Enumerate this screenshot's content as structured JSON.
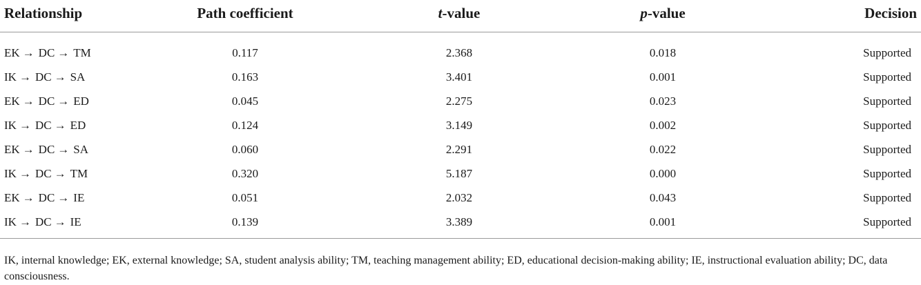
{
  "table": {
    "headers": {
      "relationship": "Relationship",
      "path_coefficient": "Path coefficient",
      "t_italic": "t",
      "t_rest": "-value",
      "p_italic": "p",
      "p_rest": "-value",
      "decision": "Decision"
    },
    "arrow": "→",
    "rows": [
      {
        "from": "EK",
        "via": "DC",
        "to": "TM",
        "path": "0.117",
        "t": "2.368",
        "p": "0.018",
        "decision": "Supported"
      },
      {
        "from": "IK",
        "via": "DC",
        "to": "SA",
        "path": "0.163",
        "t": "3.401",
        "p": "0.001",
        "decision": "Supported"
      },
      {
        "from": "EK",
        "via": "DC",
        "to": "ED",
        "path": "0.045",
        "t": "2.275",
        "p": "0.023",
        "decision": "Supported"
      },
      {
        "from": "IK",
        "via": "DC",
        "to": "ED",
        "path": "0.124",
        "t": "3.149",
        "p": "0.002",
        "decision": "Supported"
      },
      {
        "from": "EK",
        "via": "DC",
        "to": "SA",
        "path": "0.060",
        "t": "2.291",
        "p": "0.022",
        "decision": "Supported"
      },
      {
        "from": "IK",
        "via": "DC",
        "to": "TM",
        "path": "0.320",
        "t": "5.187",
        "p": "0.000",
        "decision": "Supported"
      },
      {
        "from": "EK",
        "via": "DC",
        "to": "IE",
        "path": "0.051",
        "t": "2.032",
        "p": "0.043",
        "decision": "Supported"
      },
      {
        "from": "IK",
        "via": "DC",
        "to": "IE",
        "path": "0.139",
        "t": "3.389",
        "p": "0.001",
        "decision": "Supported"
      }
    ]
  },
  "footnote": "IK, internal knowledge; EK, external knowledge; SA, student analysis ability; TM, teaching management ability; ED, educational decision-making ability; IE, instructional evaluation ability; DC, data consciousness."
}
